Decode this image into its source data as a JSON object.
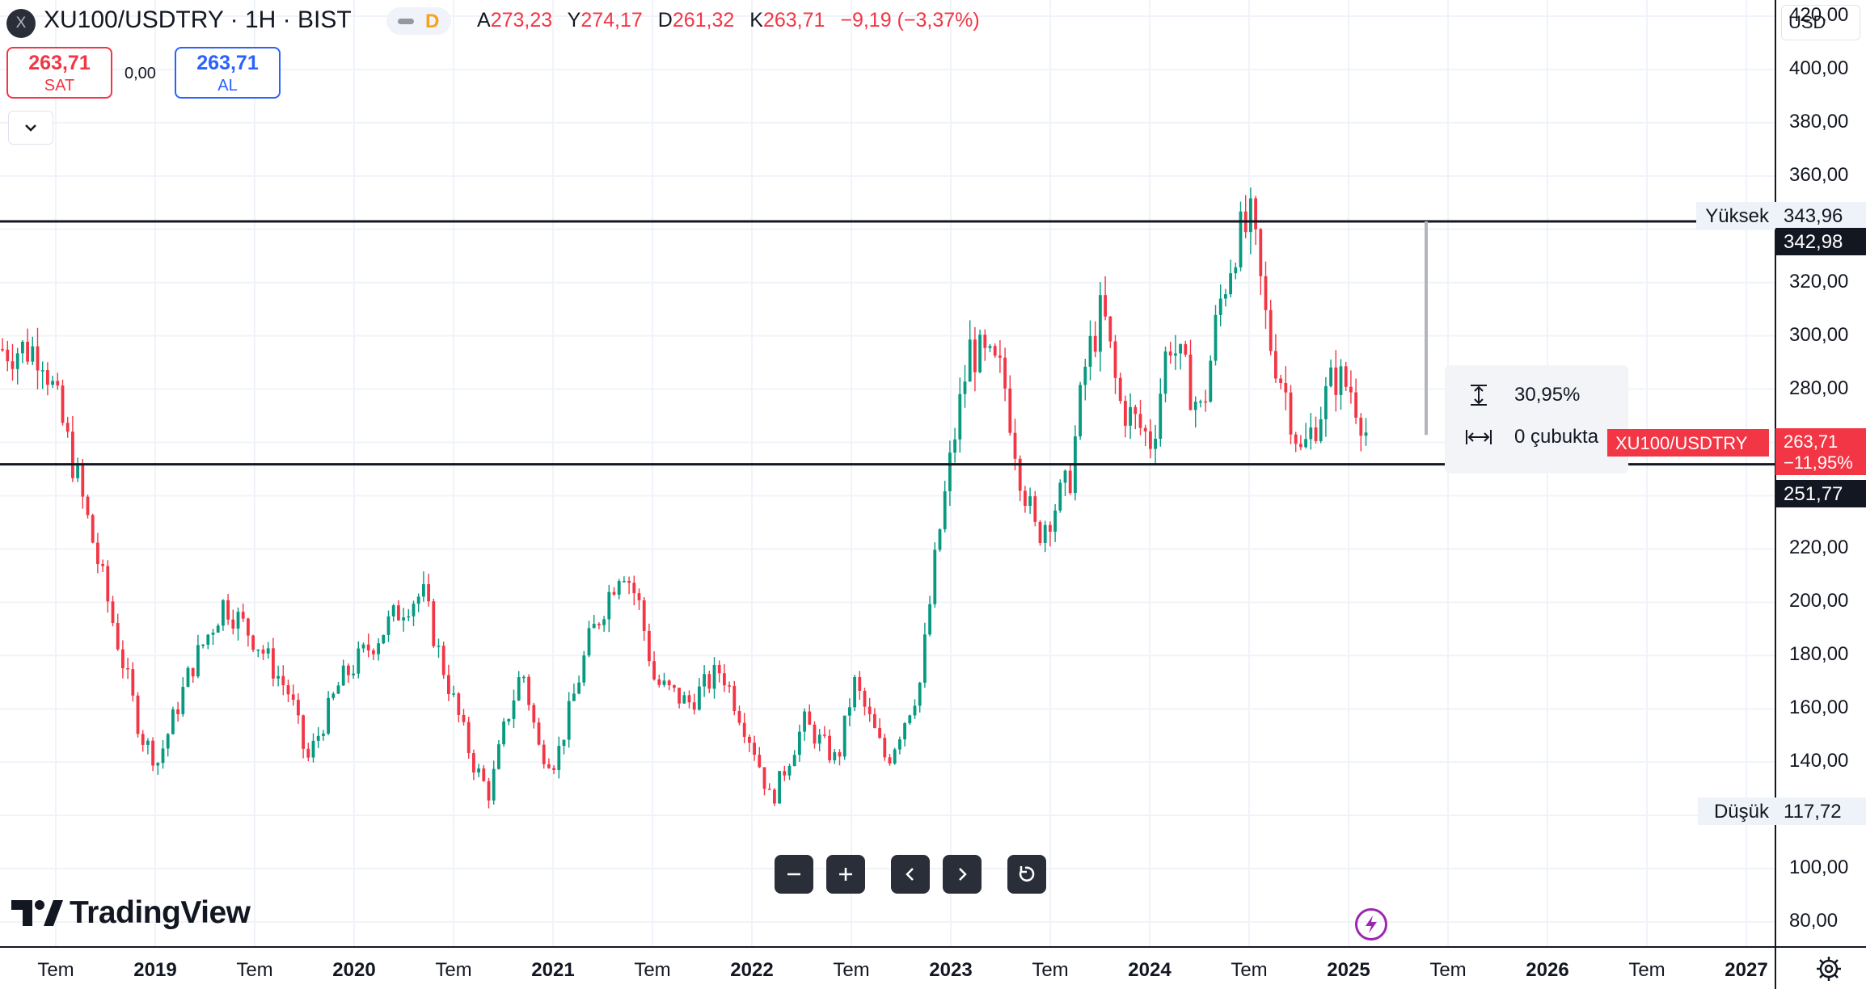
{
  "header": {
    "symbol_logo": "X",
    "symbol_title": "XU100/USDTRY · 1H · BIST",
    "session_letter": "D",
    "ohlc": {
      "open_label": "A",
      "open": "273,23",
      "high_label": "Y",
      "high": "274,17",
      "low_label": "D",
      "low": "261,32",
      "close_label": "K",
      "close": "263,71",
      "change": "−9,19 (−3,37%)"
    }
  },
  "trade": {
    "sell_price": "263,71",
    "sell_label": "SAT",
    "spread": "0,00",
    "buy_price": "263,71",
    "buy_label": "AL"
  },
  "price_scale": {
    "currency": "USD",
    "labels": [
      "420,00",
      "400,00",
      "380,00",
      "360,00",
      "320,00",
      "300,00",
      "280,00",
      "220,00",
      "200,00",
      "180,00",
      "160,00",
      "140,00",
      "100,00",
      "80,00"
    ],
    "high_label": "Yüksek",
    "high_value": "343,96",
    "low_label": "Düşük",
    "low_value": "117,72",
    "line_upper": "342,98",
    "line_lower": "251,77",
    "current_symbol": "XU100/USDTRY",
    "current_price": "263,71",
    "current_change": "−11,95%"
  },
  "measure": {
    "percent": "30,95%",
    "bars": "0 çubukta"
  },
  "time_axis": [
    {
      "label": "Tem",
      "year": false
    },
    {
      "label": "2019",
      "year": true
    },
    {
      "label": "Tem",
      "year": false
    },
    {
      "label": "2020",
      "year": true
    },
    {
      "label": "Tem",
      "year": false
    },
    {
      "label": "2021",
      "year": true
    },
    {
      "label": "Tem",
      "year": false
    },
    {
      "label": "2022",
      "year": true
    },
    {
      "label": "Tem",
      "year": false
    },
    {
      "label": "2023",
      "year": true
    },
    {
      "label": "Tem",
      "year": false
    },
    {
      "label": "2024",
      "year": true
    },
    {
      "label": "Tem",
      "year": false
    },
    {
      "label": "2025",
      "year": true
    },
    {
      "label": "Tem",
      "year": false
    },
    {
      "label": "2026",
      "year": true
    },
    {
      "label": "Tem",
      "year": false
    },
    {
      "label": "2027",
      "year": true
    }
  ],
  "nav_icons": [
    "zoom-out-icon",
    "zoom-in-icon",
    "scroll-left-icon",
    "scroll-right-icon",
    "reset-icon"
  ],
  "brand": "TradingView",
  "colors": {
    "up": "#089981",
    "down": "#f23645",
    "line": "#131722",
    "grid": "#f0f3fa",
    "accent": "#2962ff"
  },
  "chart_data": {
    "type": "candlestick",
    "y_unit": "USD",
    "ylim": [
      68,
      432
    ],
    "x_range": [
      "2018-05",
      "2027-02"
    ],
    "horizontal_lines": [
      342.98,
      251.77
    ],
    "key_points": [
      {
        "date": "2018-06",
        "price": 295
      },
      {
        "date": "2018-08",
        "price": 250
      },
      {
        "date": "2018-10",
        "price": 200
      },
      {
        "date": "2018-12",
        "price": 150
      },
      {
        "date": "2019-01",
        "price": 140
      },
      {
        "date": "2019-03",
        "price": 175
      },
      {
        "date": "2019-05",
        "price": 200
      },
      {
        "date": "2019-07",
        "price": 185
      },
      {
        "date": "2019-09",
        "price": 165
      },
      {
        "date": "2019-10",
        "price": 140
      },
      {
        "date": "2019-12",
        "price": 170
      },
      {
        "date": "2020-02",
        "price": 185
      },
      {
        "date": "2020-04",
        "price": 200
      },
      {
        "date": "2020-05",
        "price": 203
      },
      {
        "date": "2020-06",
        "price": 180
      },
      {
        "date": "2020-08",
        "price": 140
      },
      {
        "date": "2020-09",
        "price": 128
      },
      {
        "date": "2020-10",
        "price": 155
      },
      {
        "date": "2020-11",
        "price": 175
      },
      {
        "date": "2020-12",
        "price": 145
      },
      {
        "date": "2021-01",
        "price": 140
      },
      {
        "date": "2021-03",
        "price": 185
      },
      {
        "date": "2021-05",
        "price": 215
      },
      {
        "date": "2021-06",
        "price": 200
      },
      {
        "date": "2021-07",
        "price": 170
      },
      {
        "date": "2021-09",
        "price": 162
      },
      {
        "date": "2021-11",
        "price": 175
      },
      {
        "date": "2022-01",
        "price": 145
      },
      {
        "date": "2022-02",
        "price": 125
      },
      {
        "date": "2022-04",
        "price": 155
      },
      {
        "date": "2022-06",
        "price": 140
      },
      {
        "date": "2022-07",
        "price": 170
      },
      {
        "date": "2022-09",
        "price": 140
      },
      {
        "date": "2022-11",
        "price": 170
      },
      {
        "date": "2022-12",
        "price": 220
      },
      {
        "date": "2023-01",
        "price": 260
      },
      {
        "date": "2023-02",
        "price": 295
      },
      {
        "date": "2023-04",
        "price": 285
      },
      {
        "date": "2023-05",
        "price": 250
      },
      {
        "date": "2023-06",
        "price": 225
      },
      {
        "date": "2023-08",
        "price": 245
      },
      {
        "date": "2023-09",
        "price": 290
      },
      {
        "date": "2023-10",
        "price": 310
      },
      {
        "date": "2023-11",
        "price": 275
      },
      {
        "date": "2024-01",
        "price": 260
      },
      {
        "date": "2024-02",
        "price": 300
      },
      {
        "date": "2024-04",
        "price": 270
      },
      {
        "date": "2024-05",
        "price": 310
      },
      {
        "date": "2024-06",
        "price": 335
      },
      {
        "date": "2024-07",
        "price": 342
      },
      {
        "date": "2024-08",
        "price": 300
      },
      {
        "date": "2024-09",
        "price": 280
      },
      {
        "date": "2024-10",
        "price": 255
      },
      {
        "date": "2024-11",
        "price": 270
      },
      {
        "date": "2024-12",
        "price": 285
      },
      {
        "date": "2025-01",
        "price": 280
      },
      {
        "date": "2025-02",
        "price": 263.71
      }
    ]
  }
}
